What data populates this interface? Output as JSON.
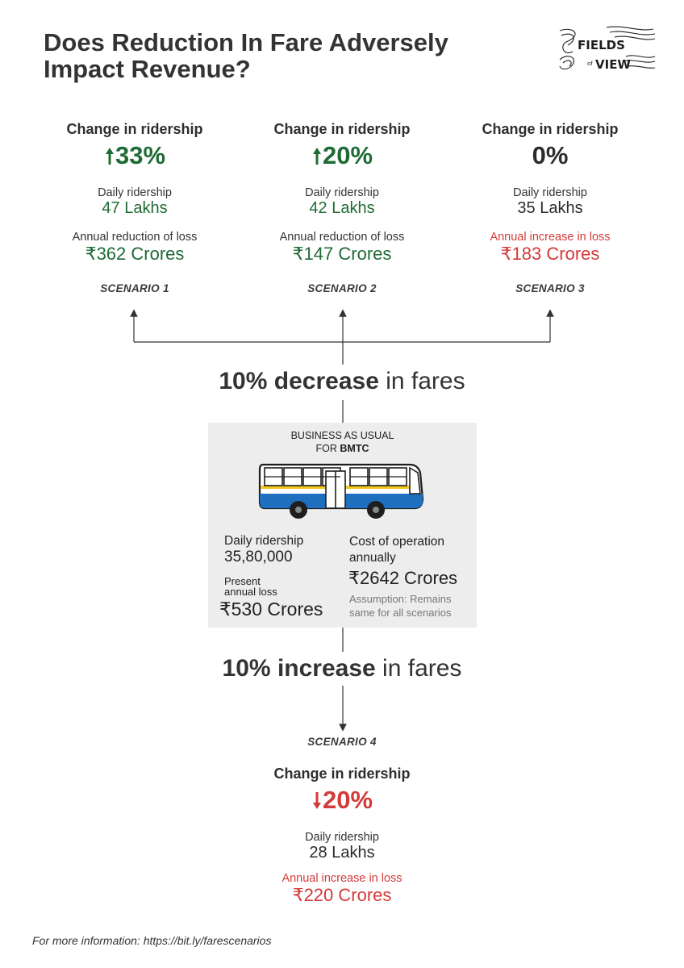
{
  "title_line1": "Does Reduction In Fare Adversely",
  "title_line2": "Impact Revenue?",
  "logo": {
    "line1": "FIELDS",
    "line2": "of",
    "line3": "VIEW"
  },
  "colors": {
    "green": "#1f6b35",
    "red": "#d43a3a",
    "dark": "#2b2b2b",
    "bus_blue": "#1f6fbf",
    "bus_yellow": "#f2c81e"
  },
  "scenarios": [
    {
      "heading": "Change in ridership",
      "arrow": "up",
      "change": "33%",
      "ridership_label": "Daily ridership",
      "ridership": "47 Lakhs",
      "loss_label": "Annual reduction of loss",
      "loss": "₹362 Crores",
      "label": "SCENARIO 1"
    },
    {
      "heading": "Change in ridership",
      "arrow": "up",
      "change": "20%",
      "ridership_label": "Daily ridership",
      "ridership": "42 Lakhs",
      "loss_label": "Annual reduction of loss",
      "loss": "₹147 Crores",
      "label": "SCENARIO 2"
    },
    {
      "heading": "Change in ridership",
      "arrow": "none",
      "change": "0%",
      "ridership_label": "Daily ridership",
      "ridership": "35 Lakhs",
      "loss_label": "Annual increase in loss",
      "loss": "₹183 Crores",
      "label": "SCENARIO 3"
    },
    {
      "heading": "Change in ridership",
      "arrow": "down",
      "change": "20%",
      "ridership_label": "Daily ridership",
      "ridership": "28 Lakhs",
      "loss_label": "Annual increase in loss",
      "loss": "₹220 Crores",
      "label": "SCENARIO 4"
    }
  ],
  "decrease": {
    "prefix": "10%",
    "bold": "decrease",
    "suffix": "in fares"
  },
  "increase": {
    "prefix": "10%",
    "bold": "increase",
    "suffix": "in fares"
  },
  "bau": {
    "line1": "BUSINESS AS USUAL",
    "line2_prefix": "FOR",
    "line2_bold": "BMTC",
    "daily_label": "Daily ridership",
    "daily_value": "35,80,000",
    "loss_label_1": "Present",
    "loss_label_2": "annual loss",
    "loss_value": "₹530 Crores",
    "cost_label_1": "Cost of operation",
    "cost_label_2": "annually",
    "cost_value": "₹2642 Crores",
    "assumption_1": "Assumption: Remains",
    "assumption_2": "same for all scenarios"
  },
  "footer": "For more information: https://bit.ly/farescenarios"
}
